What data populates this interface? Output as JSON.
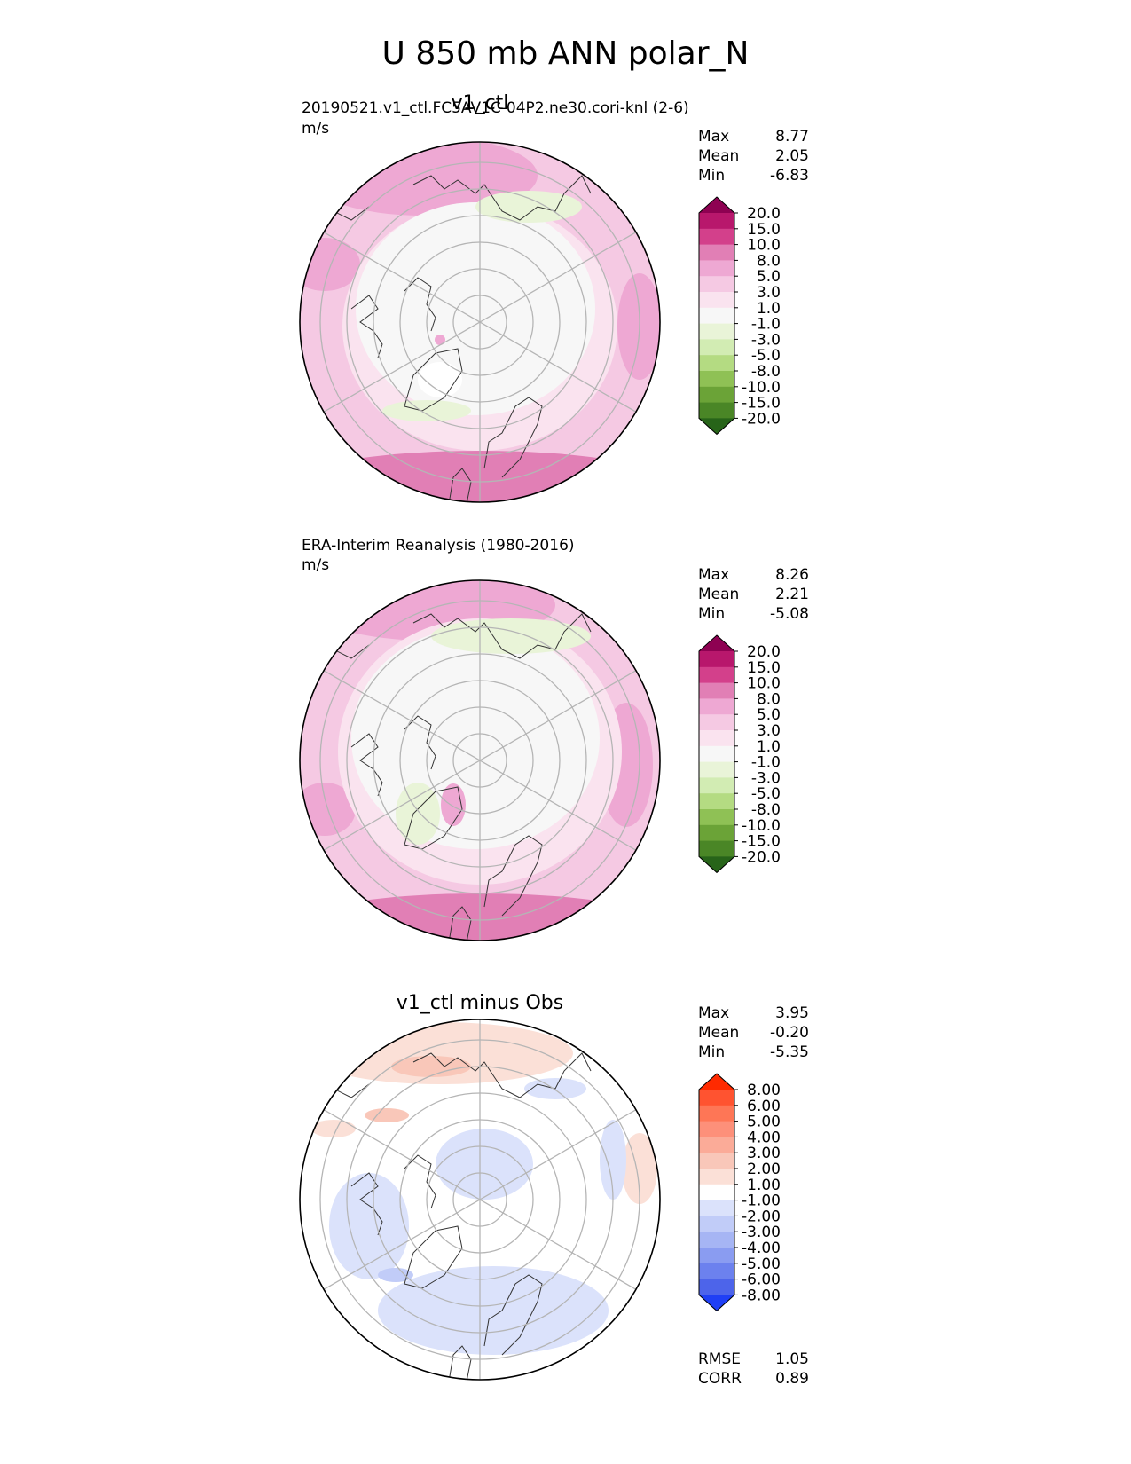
{
  "figure": {
    "title": "U 850 mb ANN polar_N"
  },
  "panels": [
    {
      "title": "v1_ctl",
      "subtitle": "20190521.v1_ctl.FC5AV1C-04P2.ne30.cori-knl (2-6)",
      "units": "m/s",
      "stats": [
        {
          "label": "Max",
          "value": "8.77"
        },
        {
          "label": "Mean",
          "value": "2.05"
        },
        {
          "label": "Min",
          "value": "-6.83"
        }
      ]
    },
    {
      "title": "",
      "subtitle": "ERA-Interim Reanalysis (1980-2016)",
      "units": "m/s",
      "stats": [
        {
          "label": "Max",
          "value": "8.26"
        },
        {
          "label": "Mean",
          "value": "2.21"
        },
        {
          "label": "Min",
          "value": "-5.08"
        }
      ]
    },
    {
      "title": "v1_ctl minus Obs",
      "subtitle": "",
      "units": "",
      "stats": [
        {
          "label": "Max",
          "value": "3.95"
        },
        {
          "label": "Mean",
          "value": "-0.20"
        },
        {
          "label": "Min",
          "value": "-5.35"
        }
      ],
      "metrics": [
        {
          "label": "RMSE",
          "value": "1.05"
        },
        {
          "label": "CORR",
          "value": "0.89"
        }
      ]
    }
  ],
  "colorbars": {
    "field": {
      "labels": [
        "20.0",
        "15.0",
        "10.0",
        "8.0",
        "5.0",
        "3.0",
        "1.0",
        "-1.0",
        "-3.0",
        "-5.0",
        "-8.0",
        "-10.0",
        "-15.0",
        "-20.0"
      ],
      "colors": [
        "#8e0152",
        "#b8176c",
        "#d3408b",
        "#e17fb5",
        "#eea8d3",
        "#f5c9e3",
        "#fae3ef",
        "#f7f7f7",
        "#e9f4d8",
        "#d2ecb3",
        "#b4db82",
        "#8fc155",
        "#6ba337",
        "#4a8626",
        "#276419"
      ]
    },
    "diff": {
      "labels": [
        "8.00",
        "6.00",
        "5.00",
        "4.00",
        "3.00",
        "2.00",
        "1.00",
        "-1.00",
        "-2.00",
        "-3.00",
        "-4.00",
        "-5.00",
        "-6.00",
        "-8.00"
      ],
      "colors": [
        "#ff2a00",
        "#ff5330",
        "#fe7656",
        "#fd907a",
        "#fbab98",
        "#f9c7b9",
        "#fbe0d7",
        "#ffffff",
        "#dbe2fb",
        "#c1ccf8",
        "#a6b5f4",
        "#8a9cf1",
        "#6c81ee",
        "#4d64ea",
        "#1f3ff5"
      ]
    }
  },
  "chart_data": [
    {
      "type": "heatmap",
      "projection": "north-polar-stereographic",
      "title": "v1_ctl",
      "variable": "U 850 mb",
      "units": "m/s",
      "stats": {
        "max": 8.77,
        "mean": 2.05,
        "min": -6.83
      },
      "levels": [
        -20,
        -15,
        -10,
        -8,
        -5,
        -3,
        -1,
        1,
        3,
        5,
        8,
        10,
        15,
        20
      ],
      "grid": true
    },
    {
      "type": "heatmap",
      "projection": "north-polar-stereographic",
      "title": "ERA-Interim Reanalysis (1980-2016)",
      "variable": "U 850 mb",
      "units": "m/s",
      "stats": {
        "max": 8.26,
        "mean": 2.21,
        "min": -5.08
      },
      "levels": [
        -20,
        -15,
        -10,
        -8,
        -5,
        -3,
        -1,
        1,
        3,
        5,
        8,
        10,
        15,
        20
      ],
      "grid": true
    },
    {
      "type": "heatmap",
      "projection": "north-polar-stereographic",
      "title": "v1_ctl minus Obs",
      "stats": {
        "max": 3.95,
        "mean": -0.2,
        "min": -5.35,
        "rmse": 1.05,
        "corr": 0.89
      },
      "levels": [
        -8,
        -6,
        -5,
        -4,
        -3,
        -2,
        -1,
        1,
        2,
        3,
        4,
        5,
        6,
        8
      ],
      "grid": true
    }
  ]
}
